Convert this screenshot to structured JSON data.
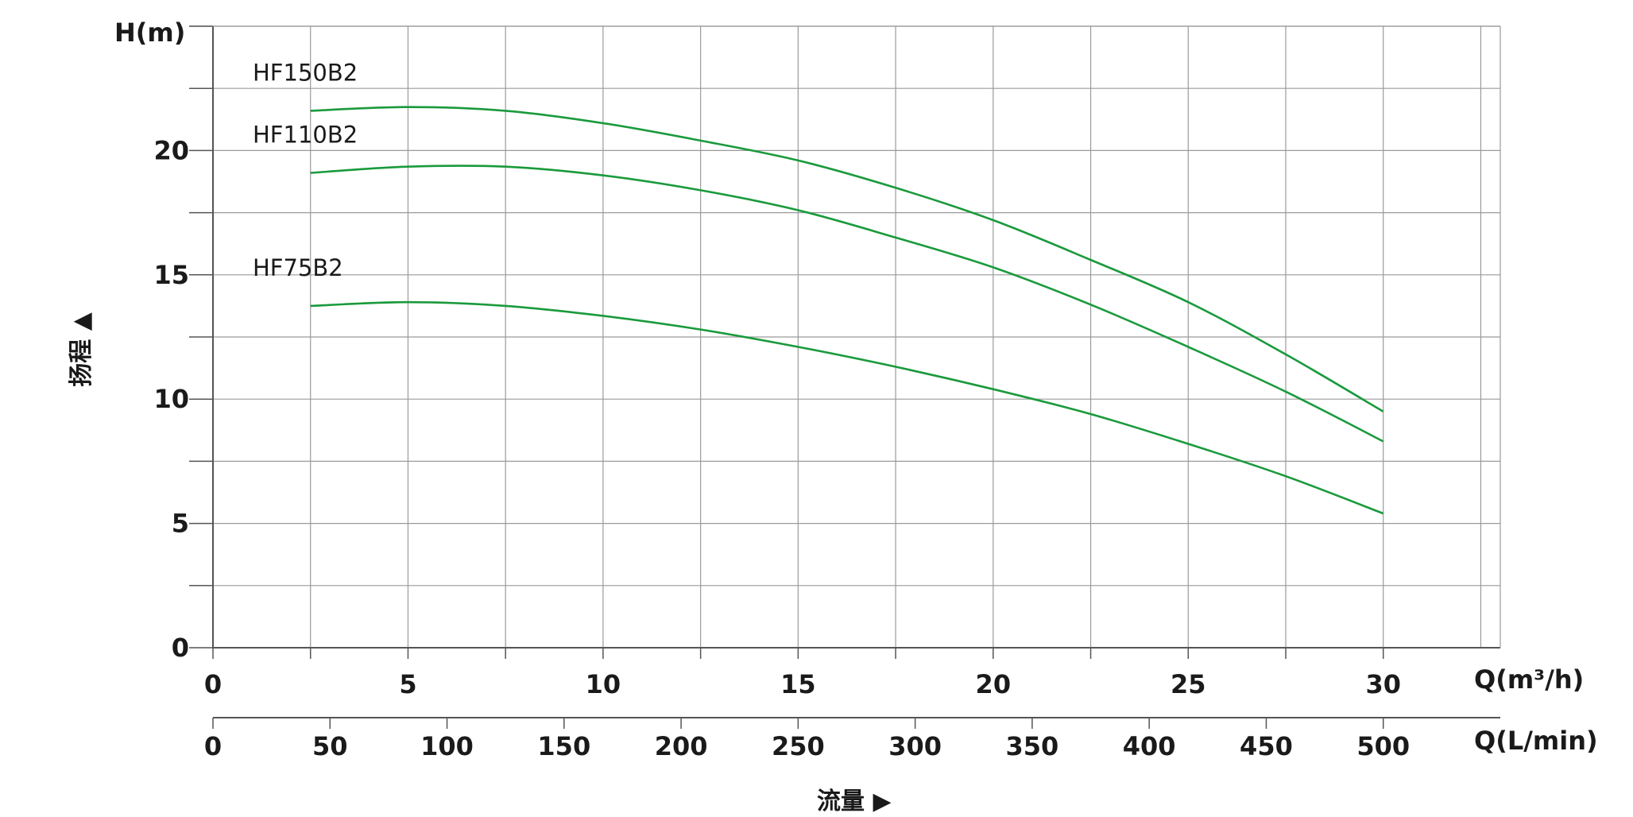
{
  "chart_data": {
    "type": "line",
    "title": "",
    "y_axis": {
      "label": "H(m)",
      "side_label": "扬程 ▲",
      "ylim": [
        0,
        25
      ],
      "ticks": [
        0,
        5,
        10,
        15,
        20
      ],
      "minor_step": 2.5
    },
    "x_axis": {
      "label": "Q(m³/h)",
      "xlim": [
        0,
        33
      ],
      "ticks": [
        0,
        5,
        10,
        15,
        20,
        25,
        30
      ],
      "minor_step": 2.5
    },
    "x_axis_secondary": {
      "label": "Q(L/min)",
      "unit_factor": 16.6667,
      "ticks": [
        0,
        50,
        100,
        150,
        200,
        250,
        300,
        350,
        400,
        450,
        500
      ]
    },
    "bottom_label": "流量 ▶",
    "grid": true,
    "series": [
      {
        "name": "HF150B2",
        "color": "#1a9a3c",
        "x": [
          2.5,
          5,
          7.5,
          10,
          12.5,
          15,
          17.5,
          20,
          22.5,
          25,
          27.5,
          30
        ],
        "y": [
          21.6,
          21.75,
          21.6,
          21.1,
          20.4,
          19.6,
          18.5,
          17.2,
          15.6,
          13.9,
          11.8,
          9.5
        ]
      },
      {
        "name": "HF110B2",
        "color": "#1a9a3c",
        "x": [
          2.5,
          5,
          7.5,
          10,
          12.5,
          15,
          17.5,
          20,
          22.5,
          25,
          27.5,
          30
        ],
        "y": [
          19.1,
          19.35,
          19.35,
          19.0,
          18.4,
          17.6,
          16.5,
          15.3,
          13.8,
          12.1,
          10.3,
          8.3
        ]
      },
      {
        "name": "HF75B2",
        "color": "#1a9a3c",
        "x": [
          2.5,
          5,
          7.5,
          10,
          12.5,
          15,
          17.5,
          20,
          22.5,
          25,
          27.5,
          30
        ],
        "y": [
          13.75,
          13.9,
          13.75,
          13.35,
          12.8,
          12.1,
          11.3,
          10.4,
          9.4,
          8.2,
          6.9,
          5.4
        ]
      }
    ]
  }
}
